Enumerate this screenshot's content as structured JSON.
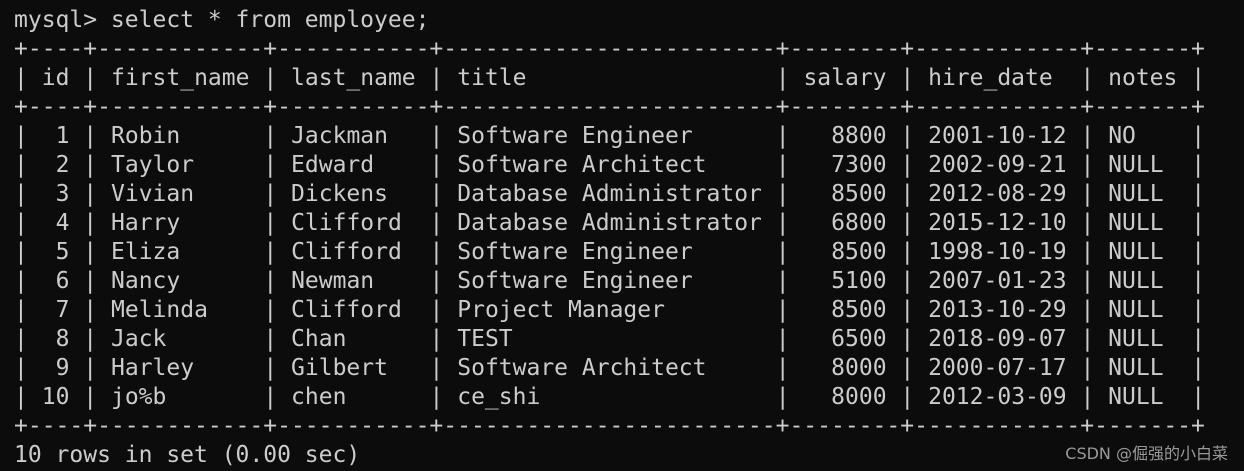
{
  "prompt": "mysql> select * from employee;",
  "table": {
    "columns": [
      "id",
      "first_name",
      "last_name",
      "title",
      "salary",
      "hire_date",
      "notes"
    ],
    "rows": [
      [
        1,
        "Robin",
        "Jackman",
        "Software Engineer",
        8800,
        "2001-10-12",
        "NO"
      ],
      [
        2,
        "Taylor",
        "Edward",
        "Software Architect",
        7300,
        "2002-09-21",
        "NULL"
      ],
      [
        3,
        "Vivian",
        "Dickens",
        "Database Administrator",
        8500,
        "2012-08-29",
        "NULL"
      ],
      [
        4,
        "Harry",
        "Clifford",
        "Database Administrator",
        6800,
        "2015-12-10",
        "NULL"
      ],
      [
        5,
        "Eliza",
        "Clifford",
        "Software Engineer",
        8500,
        "1998-10-19",
        "NULL"
      ],
      [
        6,
        "Nancy",
        "Newman",
        "Software Engineer",
        5100,
        "2007-01-23",
        "NULL"
      ],
      [
        7,
        "Melinda",
        "Clifford",
        "Project Manager",
        8500,
        "2013-10-29",
        "NULL"
      ],
      [
        8,
        "Jack",
        "Chan",
        "TEST",
        6500,
        "2018-09-07",
        "NULL"
      ],
      [
        9,
        "Harley",
        "Gilbert",
        "Software Architect",
        8000,
        "2000-07-17",
        "NULL"
      ],
      [
        10,
        "jo%b",
        "chen",
        "ce_shi",
        8000,
        "2012-03-09",
        "NULL"
      ]
    ]
  },
  "footer": "10 rows in set (0.00 sec)",
  "watermark": "CSDN @倔强的小白菜"
}
